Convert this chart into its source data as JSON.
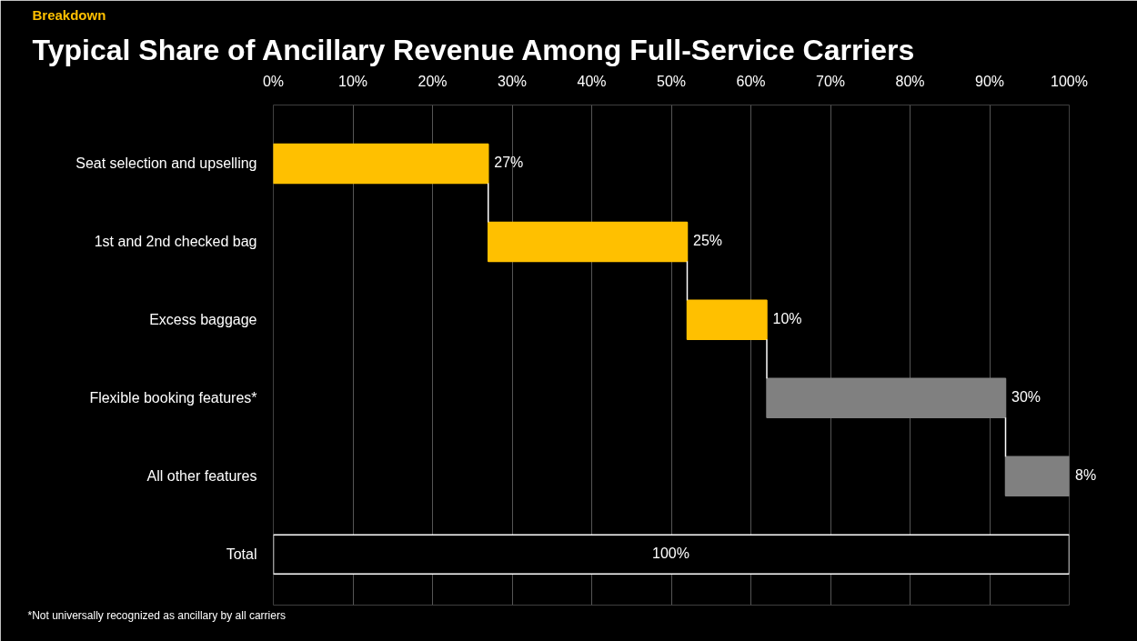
{
  "chart_data": {
    "type": "bar",
    "orientation": "horizontal",
    "subtitle": "Breakdown",
    "title": "Typical Share of Ancillary Revenue Among Full-Service Carriers",
    "categories": [
      "Seat selection and upselling",
      "1st and 2nd checked bag",
      "Excess baggage",
      "Flexible booking features*",
      "All other features",
      "Total"
    ],
    "values": [
      27,
      25,
      10,
      30,
      8,
      100
    ],
    "base": [
      0,
      27,
      52,
      62,
      92,
      0
    ],
    "colors": [
      "#ffc000",
      "#ffc000",
      "#ffc000",
      "#808080",
      "#808080",
      "#000000"
    ],
    "value_labels": [
      "27%",
      "25%",
      "10%",
      "30%",
      "8%",
      "100%"
    ],
    "xlim": [
      0,
      100
    ],
    "xticks": [
      {
        "value": 0,
        "label": "0%"
      },
      {
        "value": 10,
        "label": "10%"
      },
      {
        "value": 20,
        "label": "20%"
      },
      {
        "value": 30,
        "label": "30%"
      },
      {
        "value": 40,
        "label": "40%"
      },
      {
        "value": 50,
        "label": "50%"
      },
      {
        "value": 60,
        "label": "60%"
      },
      {
        "value": 70,
        "label": "70%"
      },
      {
        "value": 80,
        "label": "80%"
      },
      {
        "value": 90,
        "label": "90%"
      },
      {
        "value": 100,
        "label": "100%"
      }
    ],
    "grid": "x",
    "annotations": [
      "*Not universally recognized as ancillary by all carriers"
    ]
  }
}
